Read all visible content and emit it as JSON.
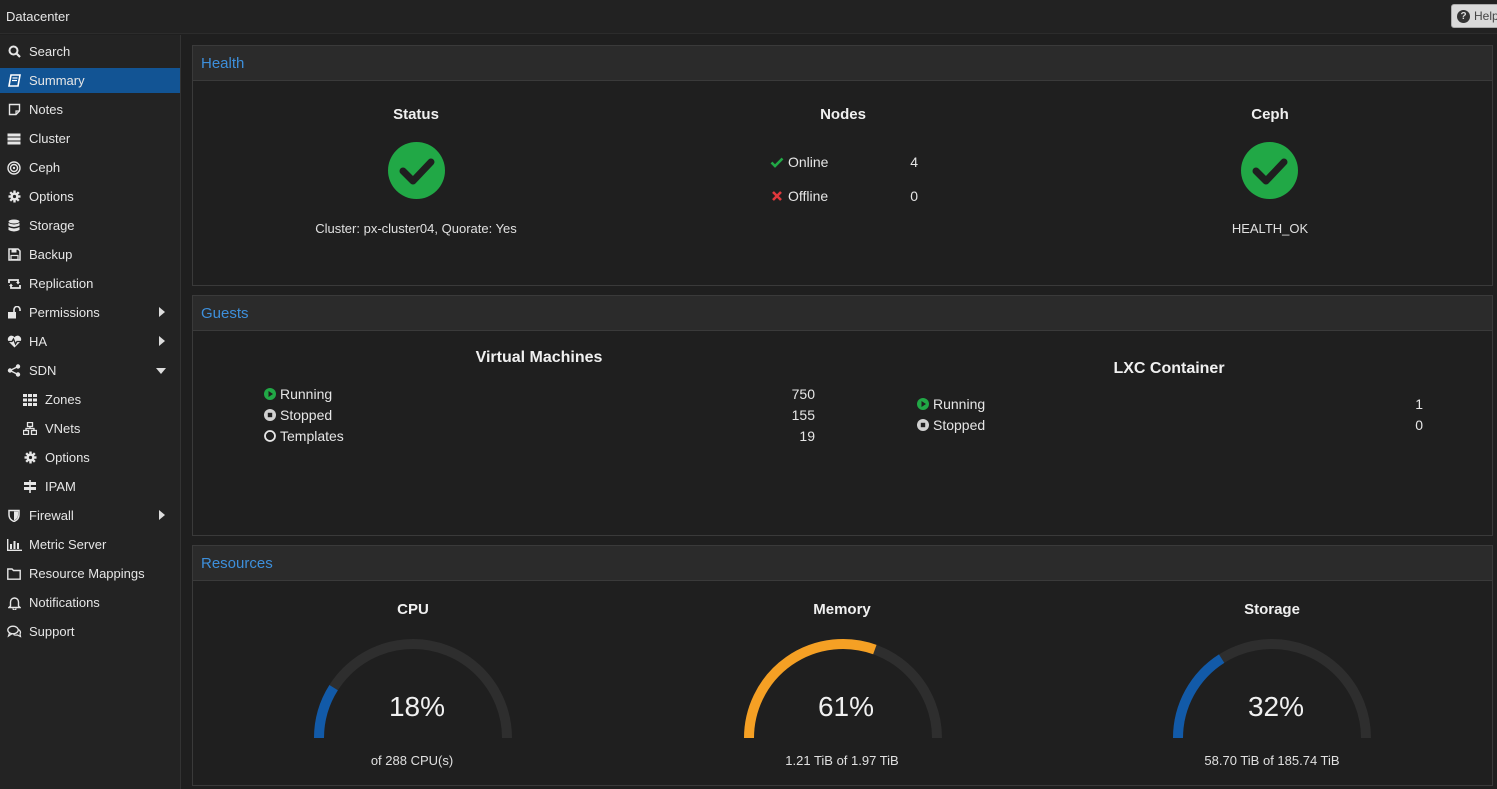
{
  "header": {
    "title": "Datacenter",
    "help_label": "Help"
  },
  "sidebar": {
    "items": [
      {
        "label": "Search",
        "icon": "search-icon"
      },
      {
        "label": "Summary",
        "icon": "book-icon",
        "active": true
      },
      {
        "label": "Notes",
        "icon": "note-icon"
      },
      {
        "label": "Cluster",
        "icon": "server-icon"
      },
      {
        "label": "Ceph",
        "icon": "ceph-icon"
      },
      {
        "label": "Options",
        "icon": "gear-icon"
      },
      {
        "label": "Storage",
        "icon": "database-icon"
      },
      {
        "label": "Backup",
        "icon": "floppy-icon"
      },
      {
        "label": "Replication",
        "icon": "retweet-icon"
      },
      {
        "label": "Permissions",
        "icon": "unlock-icon",
        "expander": "collapsed"
      },
      {
        "label": "HA",
        "icon": "heartbeat-icon",
        "expander": "collapsed"
      },
      {
        "label": "SDN",
        "icon": "sdn-icon",
        "expander": "expanded"
      },
      {
        "label": "Zones",
        "icon": "grid-icon",
        "sub": true
      },
      {
        "label": "VNets",
        "icon": "network-icon",
        "sub": true
      },
      {
        "label": "Options",
        "icon": "gear-icon",
        "sub": true
      },
      {
        "label": "IPAM",
        "icon": "signpost-icon",
        "sub": true
      },
      {
        "label": "Firewall",
        "icon": "shield-icon",
        "expander": "collapsed"
      },
      {
        "label": "Metric Server",
        "icon": "bar-chart-icon"
      },
      {
        "label": "Resource Mappings",
        "icon": "folder-icon"
      },
      {
        "label": "Notifications",
        "icon": "bell-icon"
      },
      {
        "label": "Support",
        "icon": "comments-icon"
      }
    ]
  },
  "health": {
    "title": "Health",
    "status": {
      "heading": "Status",
      "text": "Cluster: px-cluster04, Quorate: Yes"
    },
    "nodes": {
      "heading": "Nodes",
      "online_label": "Online",
      "online_count": "4",
      "offline_label": "Offline",
      "offline_count": "0"
    },
    "ceph": {
      "heading": "Ceph",
      "text": "HEALTH_OK"
    }
  },
  "guests": {
    "title": "Guests",
    "vm": {
      "heading": "Virtual Machines",
      "rows": [
        {
          "label": "Running",
          "count": "750",
          "state": "running"
        },
        {
          "label": "Stopped",
          "count": "155",
          "state": "stopped"
        },
        {
          "label": "Templates",
          "count": "19",
          "state": "template"
        }
      ]
    },
    "lxc": {
      "heading": "LXC Container",
      "rows": [
        {
          "label": "Running",
          "count": "1",
          "state": "running"
        },
        {
          "label": "Stopped",
          "count": "0",
          "state": "stopped"
        }
      ]
    }
  },
  "resources": {
    "title": "Resources",
    "gauges": [
      {
        "heading": "CPU",
        "percent_text": "18%",
        "fraction": 0.18,
        "sub": "of 288 CPU(s)",
        "color": "#125aa8"
      },
      {
        "heading": "Memory",
        "percent_text": "61%",
        "fraction": 0.61,
        "sub": "1.21 TiB of 1.97 TiB",
        "color": "#f5a024"
      },
      {
        "heading": "Storage",
        "percent_text": "32%",
        "fraction": 0.32,
        "sub": "58.70 TiB of 185.74 TiB",
        "color": "#125aa8"
      }
    ]
  },
  "colors": {
    "accent": "#3d8fdb",
    "ok_green": "#21a846",
    "error_red": "#e0383c",
    "active_bg": "#125494",
    "gauge_track": "#2e2e2e"
  }
}
